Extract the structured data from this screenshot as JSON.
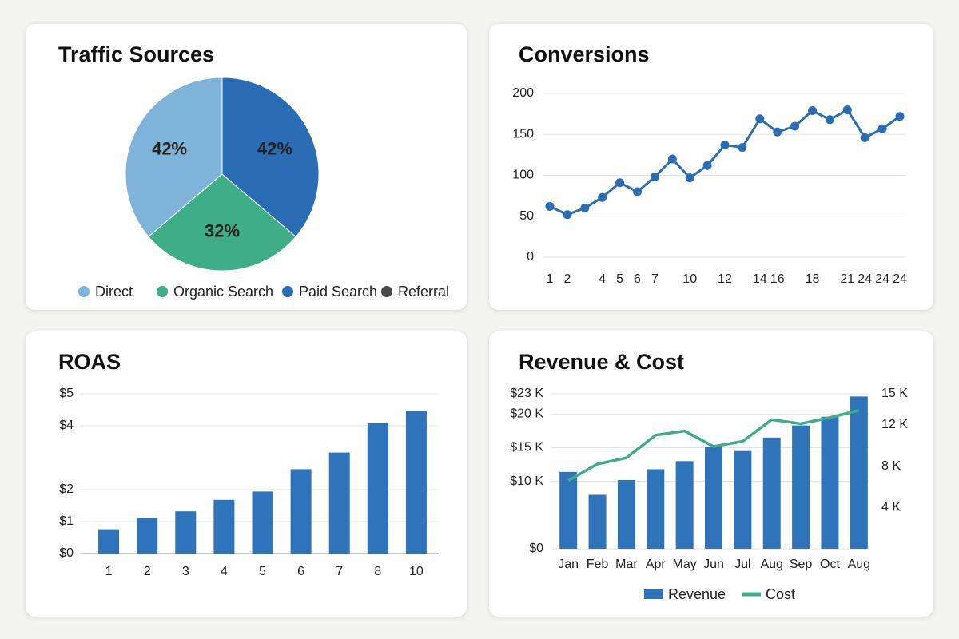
{
  "chart_data": [
    {
      "type": "pie",
      "title": "Traffic Sources",
      "categories": [
        "Direct",
        "Organic Search",
        "Paid Search",
        "Referral"
      ],
      "values": [
        42,
        32,
        42,
        null
      ],
      "value_labels": [
        "42%",
        "32%",
        "42%",
        null
      ],
      "colors": [
        "#7fb3d9",
        "#3fae88",
        "#2a6db5",
        "#4a4a4a"
      ]
    },
    {
      "type": "line",
      "title": "Conversions",
      "categories": [
        "1",
        "2",
        null,
        "4",
        "5",
        "6",
        "7",
        null,
        "10",
        null,
        "12",
        null,
        "14",
        "16",
        null,
        "18",
        null,
        "21",
        "24",
        "24",
        "24"
      ],
      "values": [
        62,
        52,
        60,
        73,
        91,
        80,
        98,
        120,
        97,
        112,
        137,
        134,
        169,
        153,
        160,
        179,
        168,
        180,
        146,
        157,
        172
      ],
      "color": "#2a6db5",
      "ylim": [
        0,
        200
      ],
      "yticks": [
        0,
        50,
        100,
        150,
        200
      ],
      "grid": true
    },
    {
      "type": "bar",
      "title": "ROAS",
      "categories": [
        "1",
        "2",
        "3",
        "4",
        "5",
        "6",
        "7",
        "8",
        "10"
      ],
      "values": [
        0.76,
        1.12,
        1.32,
        1.68,
        1.94,
        2.64,
        3.16,
        4.08,
        4.46
      ],
      "color": "#2f73ba",
      "ylim": [
        0,
        5
      ],
      "yticks": [
        {
          "value": 0,
          "label": "$0"
        },
        {
          "value": 1,
          "label": "$1"
        },
        {
          "value": 2,
          "label": "$2"
        },
        {
          "value": 4,
          "label": "$4"
        },
        {
          "value": 5,
          "label": "$5"
        }
      ],
      "grid": true
    },
    {
      "type": "combo",
      "title": "Revenue & Cost",
      "categories": [
        "Jan",
        "Feb",
        "Mar",
        "Apr",
        "May",
        "Jun",
        "Jul",
        "Aug",
        "Sep",
        "Oct",
        "Aug"
      ],
      "series": [
        {
          "name": "Revenue",
          "type": "bar",
          "color": "#2f73ba",
          "values": [
            11400,
            8000,
            10200,
            11800,
            13000,
            15100,
            14500,
            16500,
            18300,
            19600,
            22600
          ]
        },
        {
          "name": "Cost",
          "type": "line",
          "axis": "y2",
          "color": "#3fae88",
          "values": [
            6600,
            8200,
            8800,
            11000,
            11400,
            9900,
            10400,
            12500,
            12100,
            12700,
            13400
          ]
        }
      ],
      "ylim": [
        0,
        23000
      ],
      "yticks": [
        {
          "value": 0,
          "label": "$0"
        },
        {
          "value": 10000,
          "label": "$10 K"
        },
        {
          "value": 15000,
          "label": "$15 K"
        },
        {
          "value": 20000,
          "label": "$20 K"
        },
        {
          "value": 23000,
          "label": "$23 K"
        }
      ],
      "y2lim": [
        0,
        15000
      ],
      "y2ticks": [
        {
          "value": 4000,
          "label": "4 K"
        },
        {
          "value": 8000,
          "label": "8 K"
        },
        {
          "value": 12000,
          "label": "12 K"
        },
        {
          "value": 15000,
          "label": "15 K"
        }
      ],
      "grid": true
    }
  ]
}
